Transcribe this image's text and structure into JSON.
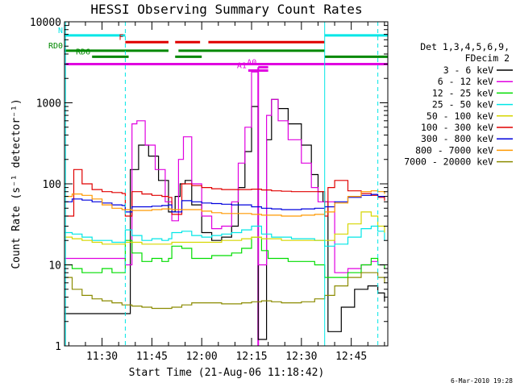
{
  "chart_data": {
    "type": "line",
    "title": "HESSI Observing Summary Count Rates",
    "xlabel": "Start Time (21-Aug-06 11:18:42)",
    "ylabel": "Count Rate (s⁻¹ detector⁻¹)",
    "y_scale": "log",
    "ylim": [
      1,
      10000
    ],
    "xlim": [
      "11:18:42",
      "12:56:00"
    ],
    "x_ticks": [
      "11:30",
      "11:45",
      "12:00",
      "12:15",
      "12:30",
      "12:45"
    ],
    "y_ticks": [
      "1",
      "10",
      "100",
      "1000",
      "10000"
    ],
    "grid": false,
    "legend_header": [
      "Det 1,3,4,5,6,9,",
      "FDecim 2"
    ],
    "legend_position": "right",
    "footer_date": "6-Mar-2010 19:28",
    "vertical_markers": [
      {
        "time": "11:19:00",
        "color": "#00e6e6",
        "style": "solid"
      },
      {
        "time": "11:37:00",
        "color": "#00e6e6",
        "style": "dashed"
      },
      {
        "time": "12:37:00",
        "color": "#00e6e6",
        "style": "solid"
      },
      {
        "time": "12:53:00",
        "color": "#00e6e6",
        "style": "dashed"
      }
    ],
    "flags": [
      {
        "label": "N",
        "color": "#00e6e6",
        "value": 6800,
        "segments": [
          [
            "11:18:42",
            "11:37:00"
          ],
          [
            "12:37:00",
            "12:56:00"
          ]
        ]
      },
      {
        "label": "F",
        "color": "#e00000",
        "value": 5600,
        "segments": [
          [
            "11:37:00",
            "11:50:00"
          ],
          [
            "11:52:00",
            "11:59:30"
          ],
          [
            "12:02:00",
            "12:37:00"
          ]
        ]
      },
      {
        "label": "RD0",
        "color": "#008800",
        "value": 4400,
        "segments": [
          [
            "11:18:42",
            "11:50:00"
          ],
          [
            "11:53:00",
            "12:37:00"
          ]
        ]
      },
      {
        "label": "RD6",
        "color": "#008800",
        "value": 3700,
        "segments": [
          [
            "11:27:00",
            "11:38:00"
          ],
          [
            "11:52:00",
            "12:00:00"
          ],
          [
            "12:37:00",
            "12:56:00"
          ]
        ]
      },
      {
        "label": "",
        "color": "#e000e0",
        "value": 3000,
        "segments": [
          [
            "11:18:42",
            "12:56:00"
          ]
        ]
      },
      {
        "label": "A1",
        "color": "#e000e0",
        "value": 2500,
        "segments": [
          [
            "12:14:00",
            "12:20:00"
          ]
        ]
      },
      {
        "label": "A0",
        "color": "#e000e0",
        "value": 2750,
        "segments": [
          [
            "12:17:00",
            "12:20:00"
          ]
        ]
      }
    ],
    "series": [
      {
        "name": "3 - 6 keV",
        "color": "#000000",
        "x": [
          "11:18:42",
          "11:30:00",
          "11:34:00",
          "11:36:30",
          "11:38:30",
          "11:41:00",
          "11:44:00",
          "11:47:00",
          "11:50:00",
          "11:52:00",
          "11:53:30",
          "11:55:00",
          "11:57:00",
          "12:00:00",
          "12:03:00",
          "12:06:00",
          "12:09:00",
          "12:11:00",
          "12:13:00",
          "12:15:00",
          "12:17:00",
          "12:18:00",
          "12:19:30",
          "12:21:00",
          "12:23:00",
          "12:26:00",
          "12:30:00",
          "12:33:00",
          "12:35:00",
          "12:36:30",
          "12:38:00",
          "12:42:00",
          "12:46:00",
          "12:50:00",
          "12:53:00",
          "12:55:00"
        ],
        "y": [
          2.5,
          2.5,
          2.5,
          2.5,
          150,
          300,
          220,
          110,
          45,
          70,
          100,
          110,
          55,
          25,
          20,
          22,
          30,
          90,
          250,
          900,
          1.2,
          1.2,
          350,
          1100,
          850,
          550,
          300,
          130,
          80,
          60,
          1.5,
          3,
          5,
          5.5,
          4.5,
          3.5
        ]
      },
      {
        "name": "6 - 12 keV",
        "color": "#e000e0",
        "x": [
          "11:18:42",
          "11:30:00",
          "11:35:00",
          "11:37:00",
          "11:39:00",
          "11:40:30",
          "11:43:00",
          "11:46:00",
          "11:49:00",
          "11:51:00",
          "11:53:00",
          "11:54:30",
          "11:57:00",
          "12:00:00",
          "12:03:00",
          "12:06:00",
          "12:09:00",
          "12:11:00",
          "12:13:00",
          "12:15:00",
          "12:17:00",
          "12:18:00",
          "12:19:30",
          "12:21:00",
          "12:23:00",
          "12:26:00",
          "12:30:00",
          "12:33:00",
          "12:35:00",
          "12:37:00",
          "12:40:00",
          "12:44:00",
          "12:48:00",
          "12:51:00",
          "12:53:00",
          "12:55:00"
        ],
        "y": [
          12,
          12,
          12,
          10,
          550,
          600,
          300,
          150,
          60,
          35,
          200,
          380,
          100,
          40,
          28,
          30,
          60,
          180,
          500,
          2400,
          10,
          10,
          700,
          1100,
          600,
          350,
          180,
          90,
          60,
          60,
          8,
          9,
          10,
          11,
          10,
          9
        ]
      },
      {
        "name": "12 - 25 keV",
        "color": "#00dd00",
        "x": [
          "11:18:42",
          "11:21:00",
          "11:24:00",
          "11:27:00",
          "11:30:00",
          "11:33:00",
          "11:36:00",
          "11:37:00",
          "11:39:00",
          "11:42:00",
          "11:45:00",
          "11:48:00",
          "11:50:00",
          "11:51:00",
          "11:54:00",
          "11:57:00",
          "12:00:00",
          "12:03:00",
          "12:06:00",
          "12:09:00",
          "12:12:00",
          "12:15:00",
          "12:18:00",
          "12:20:00",
          "12:23:00",
          "12:26:00",
          "12:30:00",
          "12:34:00",
          "12:37:00",
          "12:40:00",
          "12:44:00",
          "12:48:00",
          "12:51:00",
          "12:53:00",
          "12:55:00"
        ],
        "y": [
          10,
          9,
          8,
          8,
          9,
          8,
          8,
          20,
          14,
          11,
          12,
          11,
          12,
          17,
          16,
          12,
          12,
          13,
          13,
          14,
          16,
          22,
          15,
          12,
          12,
          11,
          11,
          10,
          7,
          7,
          8,
          10,
          12,
          10,
          9
        ]
      },
      {
        "name": "25 - 50 keV",
        "color": "#00e6e6",
        "x": [
          "11:18:42",
          "11:21:00",
          "11:24:00",
          "11:27:00",
          "11:30:00",
          "11:33:00",
          "11:36:00",
          "11:37:00",
          "11:39:00",
          "11:42:00",
          "11:45:00",
          "11:48:00",
          "11:50:00",
          "11:51:00",
          "11:54:00",
          "11:57:00",
          "12:00:00",
          "12:03:00",
          "12:06:00",
          "12:09:00",
          "12:12:00",
          "12:15:00",
          "12:18:00",
          "12:21:00",
          "12:24:00",
          "12:27:00",
          "12:30:00",
          "12:34:00",
          "12:37:00",
          "12:40:00",
          "12:44:00",
          "12:48:00",
          "12:51:00",
          "12:53:00",
          "12:55:00"
        ],
        "y": [
          25,
          24,
          22,
          20,
          20,
          19,
          19,
          27,
          23,
          20,
          21,
          20,
          21,
          25,
          26,
          23,
          22,
          23,
          24,
          25,
          27,
          30,
          24,
          22,
          22,
          21,
          21,
          20,
          17,
          18,
          22,
          28,
          30,
          26,
          20
        ]
      },
      {
        "name": "50 - 100 keV",
        "color": "#d6d600",
        "x": [
          "11:18:42",
          "11:21:00",
          "11:24:00",
          "11:27:00",
          "11:30:00",
          "11:33:00",
          "11:36:00",
          "11:37:00",
          "11:39:00",
          "11:42:00",
          "11:45:00",
          "11:48:00",
          "11:50:00",
          "11:51:00",
          "11:54:00",
          "11:57:00",
          "12:00:00",
          "12:03:00",
          "12:06:00",
          "12:09:00",
          "12:12:00",
          "12:15:00",
          "12:18:00",
          "12:21:00",
          "12:24:00",
          "12:27:00",
          "12:30:00",
          "12:34:00",
          "12:37:00",
          "12:40:00",
          "12:44:00",
          "12:48:00",
          "12:51:00",
          "12:53:00",
          "12:55:00"
        ],
        "y": [
          22,
          21,
          20,
          19,
          18,
          18,
          18,
          19,
          19,
          18,
          18,
          18,
          18,
          19,
          19,
          19,
          19,
          19,
          20,
          20,
          21,
          22,
          21,
          21,
          20,
          20,
          20,
          20,
          20,
          24,
          32,
          45,
          40,
          30,
          25
        ]
      },
      {
        "name": "100 - 300 keV",
        "color": "#e00000",
        "x": [
          "11:18:42",
          "11:20:00",
          "11:21:30",
          "11:24:00",
          "11:27:00",
          "11:30:00",
          "11:33:00",
          "11:36:00",
          "11:37:00",
          "11:39:00",
          "11:42:00",
          "11:45:00",
          "11:48:00",
          "11:50:00",
          "11:51:00",
          "11:54:00",
          "11:57:00",
          "12:00:00",
          "12:03:00",
          "12:06:00",
          "12:09:00",
          "12:12:00",
          "12:15:00",
          "12:18:00",
          "12:21:00",
          "12:24:00",
          "12:27:00",
          "12:30:00",
          "12:34:00",
          "12:37:00",
          "12:38:00",
          "12:40:00",
          "12:44:00",
          "12:48:00",
          "12:51:00",
          "12:53:00",
          "12:55:00"
        ],
        "y": [
          40,
          40,
          150,
          100,
          85,
          80,
          78,
          76,
          40,
          80,
          75,
          72,
          70,
          68,
          42,
          100,
          95,
          90,
          87,
          85,
          85,
          85,
          86,
          84,
          82,
          81,
          80,
          80,
          80,
          40,
          90,
          110,
          82,
          76,
          72,
          68,
          62
        ]
      },
      {
        "name": "300 - 800 keV",
        "color": "#0000dd",
        "x": [
          "11:18:42",
          "11:21:00",
          "11:24:00",
          "11:27:00",
          "11:30:00",
          "11:33:00",
          "11:36:00",
          "11:37:00",
          "11:39:00",
          "11:42:00",
          "11:45:00",
          "11:48:00",
          "11:50:00",
          "11:51:00",
          "11:54:00",
          "11:57:00",
          "12:00:00",
          "12:03:00",
          "12:06:00",
          "12:09:00",
          "12:12:00",
          "12:15:00",
          "12:18:00",
          "12:21:00",
          "12:24:00",
          "12:27:00",
          "12:30:00",
          "12:34:00",
          "12:37:00",
          "12:40:00",
          "12:44:00",
          "12:48:00",
          "12:51:00",
          "12:53:00",
          "12:55:00"
        ],
        "y": [
          60,
          65,
          63,
          60,
          58,
          55,
          54,
          45,
          52,
          52,
          53,
          54,
          55,
          45,
          62,
          60,
          58,
          57,
          56,
          55,
          55,
          52,
          50,
          49,
          48,
          48,
          49,
          50,
          52,
          60,
          68,
          72,
          74,
          70,
          68
        ]
      },
      {
        "name": "800 - 7000 keV",
        "color": "#ff9900",
        "x": [
          "11:18:42",
          "11:21:00",
          "11:24:00",
          "11:27:00",
          "11:30:00",
          "11:33:00",
          "11:36:00",
          "11:39:00",
          "11:42:00",
          "11:45:00",
          "11:48:00",
          "11:51:00",
          "11:54:00",
          "11:57:00",
          "12:00:00",
          "12:03:00",
          "12:06:00",
          "12:09:00",
          "12:12:00",
          "12:15:00",
          "12:18:00",
          "12:21:00",
          "12:24:00",
          "12:27:00",
          "12:30:00",
          "12:34:00",
          "12:37:00",
          "12:40:00",
          "12:44:00",
          "12:48:00",
          "12:51:00",
          "12:53:00",
          "12:55:00"
        ],
        "y": [
          70,
          75,
          72,
          65,
          55,
          50,
          48,
          47,
          47,
          48,
          49,
          48,
          48,
          48,
          46,
          44,
          43,
          43,
          43,
          42,
          41,
          41,
          40,
          40,
          41,
          42,
          45,
          58,
          70,
          80,
          82,
          80,
          75
        ]
      },
      {
        "name": "7000 - 20000 keV",
        "color": "#8b8b00",
        "x": [
          "11:18:42",
          "11:21:00",
          "11:24:00",
          "11:27:00",
          "11:30:00",
          "11:33:00",
          "11:36:00",
          "11:39:00",
          "11:42:00",
          "11:45:00",
          "11:48:00",
          "11:51:00",
          "11:54:00",
          "11:57:00",
          "12:00:00",
          "12:03:00",
          "12:06:00",
          "12:09:00",
          "12:12:00",
          "12:15:00",
          "12:18:00",
          "12:21:00",
          "12:24:00",
          "12:27:00",
          "12:30:00",
          "12:34:00",
          "12:37:00",
          "12:40:00",
          "12:44:00",
          "12:48:00",
          "12:51:00",
          "12:53:00",
          "12:55:00"
        ],
        "y": [
          7,
          5,
          4.2,
          3.8,
          3.6,
          3.4,
          3.2,
          3.1,
          3.0,
          2.9,
          2.9,
          3.0,
          3.2,
          3.4,
          3.4,
          3.4,
          3.3,
          3.3,
          3.4,
          3.5,
          3.6,
          3.5,
          3.4,
          3.4,
          3.5,
          3.8,
          4.2,
          5.5,
          7,
          8,
          8,
          7,
          6
        ]
      }
    ]
  }
}
